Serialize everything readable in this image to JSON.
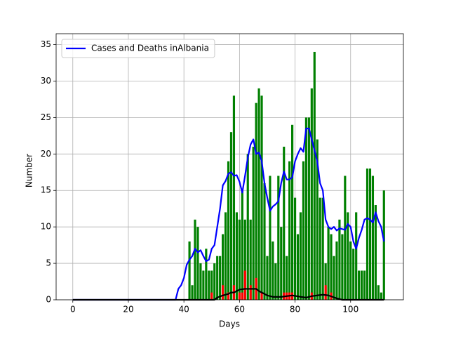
{
  "chart_data": {
    "type": "bar",
    "xlabel": "Days",
    "ylabel": "Number",
    "xlim": [
      -6,
      119
    ],
    "ylim": [
      0,
      36.5
    ],
    "xticks": [
      0,
      20,
      40,
      60,
      80,
      100
    ],
    "yticks": [
      0,
      5,
      10,
      15,
      20,
      25,
      30,
      35
    ],
    "grid": true,
    "legend": "upper left",
    "bar_start": 0,
    "bars": [
      {
        "color": "#008000",
        "values": [
          0,
          0,
          0,
          0,
          0,
          0,
          0,
          0,
          0,
          0,
          0,
          0,
          0,
          0,
          0,
          0,
          0,
          0,
          0,
          0,
          0,
          0,
          0,
          0,
          0,
          0,
          0,
          0,
          0,
          0,
          0,
          0,
          0,
          0,
          0,
          0,
          0,
          0,
          0,
          0,
          0,
          0,
          8,
          2,
          11,
          10,
          5,
          4,
          7,
          4,
          4,
          5,
          6,
          6,
          9,
          12,
          19,
          23,
          28,
          12,
          11,
          15,
          11,
          20,
          11,
          21,
          27,
          29,
          28,
          16,
          6,
          17,
          8,
          5,
          17,
          10,
          21,
          6,
          19,
          24,
          14,
          9,
          12,
          19,
          25,
          25,
          29,
          34,
          22,
          14,
          14,
          5,
          10,
          9,
          6,
          8,
          11,
          9,
          17,
          12,
          8,
          7,
          12,
          4,
          4,
          4,
          18,
          18,
          17,
          13,
          2,
          1,
          15
        ]
      },
      {
        "color": "#ff0000",
        "values": [
          0,
          0,
          0,
          0,
          0,
          0,
          0,
          0,
          0,
          0,
          0,
          0,
          0,
          0,
          0,
          0,
          0,
          0,
          0,
          0,
          0,
          0,
          0,
          0,
          0,
          0,
          0,
          0,
          0,
          0,
          0,
          0,
          0,
          0,
          0,
          0,
          0,
          0,
          0,
          0,
          0,
          0,
          0,
          0,
          0,
          0,
          0,
          0,
          0,
          0,
          1,
          0,
          0,
          0,
          2,
          0,
          1,
          0,
          2,
          0,
          1,
          1,
          4,
          0,
          2,
          0,
          3,
          0,
          1,
          0,
          0,
          0,
          0,
          0,
          0,
          0,
          1,
          1,
          1,
          1,
          0,
          0,
          0,
          0,
          0,
          0,
          1,
          0,
          0,
          0,
          0,
          2,
          0,
          1,
          0,
          0,
          0,
          0,
          0,
          0,
          0,
          0,
          0,
          0,
          0,
          0,
          0,
          0,
          0,
          0,
          0,
          0,
          0
        ]
      }
    ],
    "series": [
      {
        "name": "Cases and Deaths inAlbania",
        "color": "#0000ff",
        "x": [
          0,
          37,
          38,
          39,
          40,
          41,
          42,
          43,
          44,
          45,
          46,
          47,
          48,
          49,
          50,
          51,
          52,
          53,
          54,
          55,
          56,
          57,
          58,
          59,
          60,
          61,
          62,
          63,
          64,
          65,
          66,
          67,
          68,
          69,
          70,
          71,
          72,
          73,
          74,
          75,
          76,
          77,
          78,
          79,
          80,
          81,
          82,
          83,
          84,
          85,
          86,
          87,
          88,
          89,
          90,
          91,
          92,
          93,
          94,
          95,
          96,
          97,
          98,
          99,
          100,
          101,
          102,
          103,
          104,
          105,
          106,
          107,
          108,
          109,
          110,
          111,
          112
        ],
        "values": [
          0,
          0,
          1.5,
          2,
          3,
          4.8,
          5.5,
          6,
          7,
          6.5,
          6.8,
          6,
          5.3,
          5.5,
          7,
          7.5,
          10,
          12.5,
          15.7,
          16.3,
          17.3,
          17.5,
          17,
          17.1,
          16.2,
          14.7,
          17,
          19.5,
          21.3,
          22,
          20,
          20.2,
          19,
          16,
          14,
          12.2,
          12.8,
          13.1,
          13.5,
          16,
          17.6,
          16.5,
          16.5,
          16.8,
          19,
          20,
          20.8,
          20.3,
          23.5,
          23.5,
          22,
          20.5,
          19,
          16,
          15,
          11,
          10,
          9.7,
          10,
          9.5,
          9.8,
          9.7,
          9.6,
          10.4,
          10,
          8,
          7,
          8.5,
          9.6,
          11,
          11.2,
          11,
          10.6,
          12,
          10.8,
          10,
          8
        ]
      },
      {
        "color": "#000000",
        "x": [
          0,
          51,
          52,
          54,
          56,
          57,
          58,
          60,
          62,
          64,
          66,
          67,
          68,
          70,
          72,
          75,
          77,
          79,
          82,
          84,
          86,
          88,
          90,
          92,
          95,
          97,
          112
        ],
        "values": [
          0,
          0,
          0.3,
          0.6,
          0.8,
          1,
          1,
          1.4,
          1.5,
          1.5,
          1.5,
          1.2,
          1,
          0.6,
          0.4,
          0.4,
          0.5,
          0.6,
          0.4,
          0.3,
          0.5,
          0.6,
          0.7,
          0.6,
          0.2,
          0,
          0
        ]
      }
    ]
  }
}
